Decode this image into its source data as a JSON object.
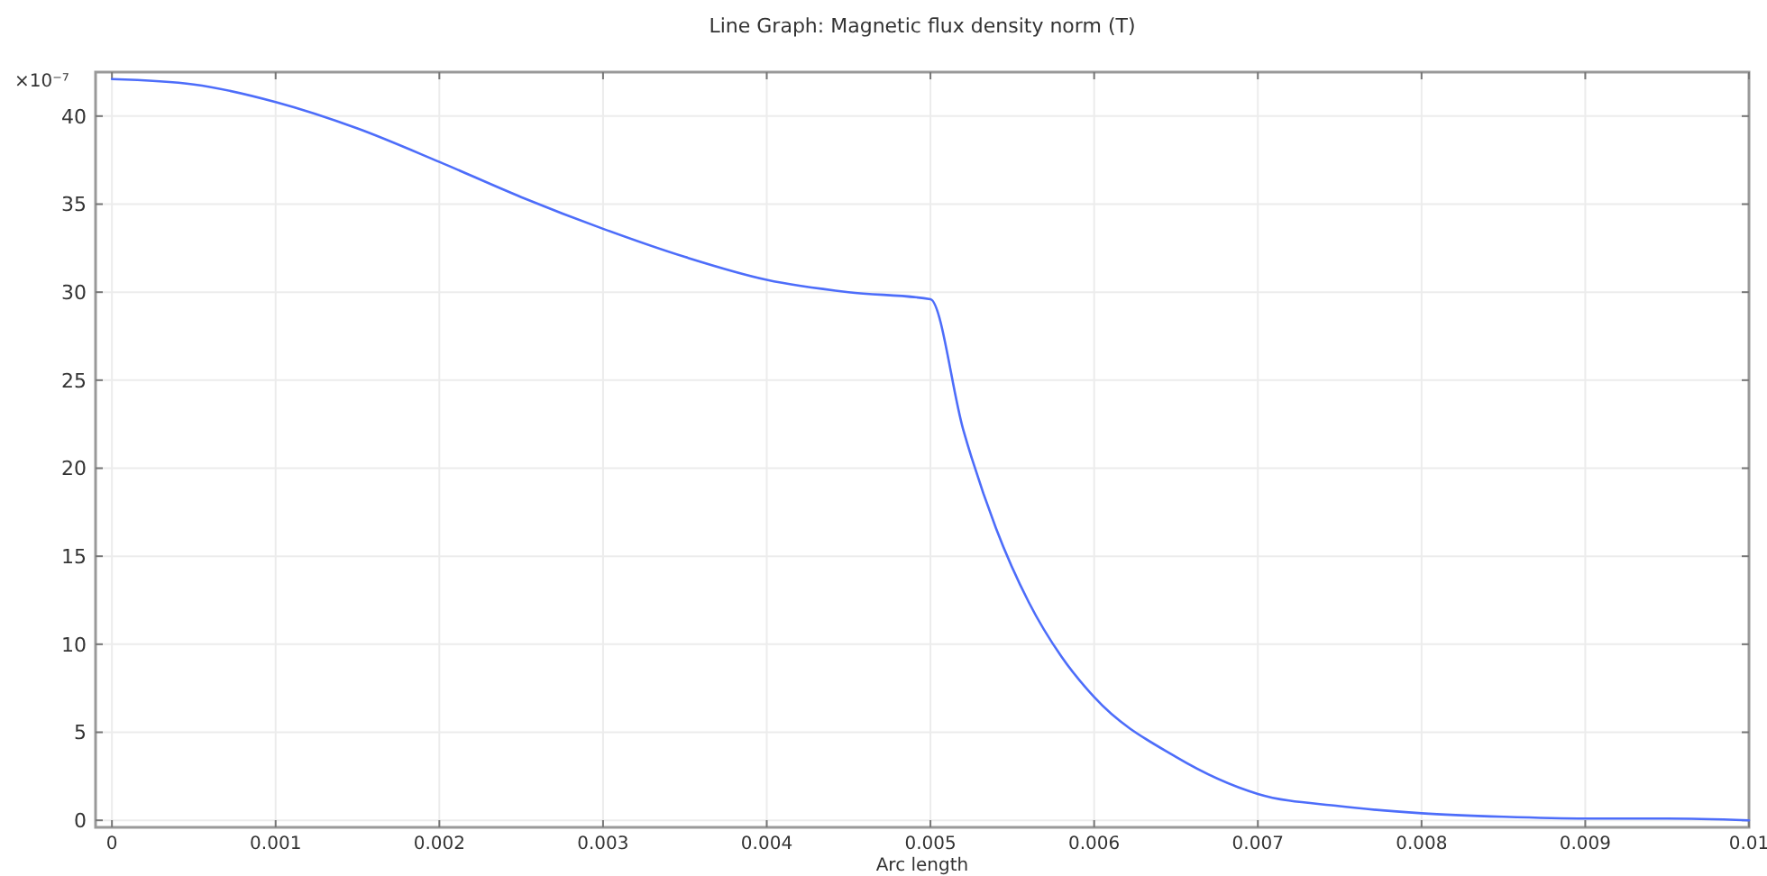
{
  "chart_data": {
    "type": "line",
    "title": "Line Graph: Magnetic flux density norm (T)",
    "xlabel": "Arc length",
    "annotations": [
      "×10⁻⁷"
    ],
    "x": [
      0,
      0.0005,
      0.001,
      0.0015,
      0.002,
      0.0025,
      0.003,
      0.0035,
      0.004,
      0.0045,
      0.005,
      0.0052,
      0.0054,
      0.0056,
      0.0058,
      0.006,
      0.0065,
      0.007,
      0.0075,
      0.008,
      0.0085,
      0.009,
      0.0095,
      0.01
    ],
    "series": [
      {
        "color": "#4d6dfa",
        "values": [
          42.1,
          41.8,
          40.8,
          39.3,
          37.4,
          35.4,
          33.6,
          32.0,
          30.7,
          30.0,
          29.6,
          22.2,
          16.6,
          12.4,
          9.3,
          7.0,
          3.6,
          1.5,
          0.8,
          0.4,
          0.2,
          0.1,
          0.1,
          0.0
        ]
      }
    ],
    "xlim": [
      -0.0001,
      0.01
    ],
    "ylim": [
      -0.4,
      42.5
    ],
    "xticks": [
      0,
      0.001,
      0.002,
      0.003,
      0.004,
      0.005,
      0.006,
      0.007,
      0.008,
      0.009,
      0.01
    ],
    "yticks": [
      0,
      5,
      10,
      15,
      20,
      25,
      30,
      35,
      40
    ],
    "grid": true,
    "marker": "none",
    "line_style": "solid"
  }
}
